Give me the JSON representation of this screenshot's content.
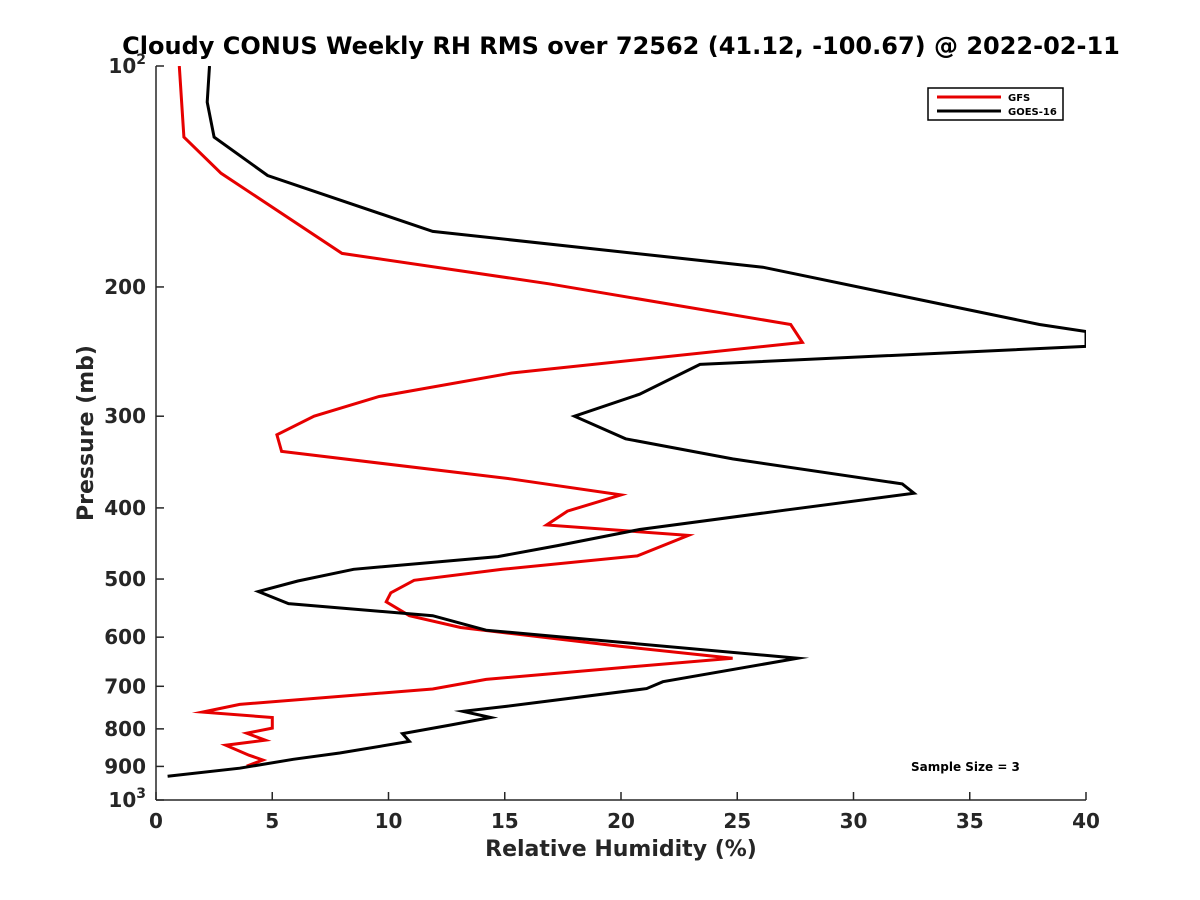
{
  "chart_data": {
    "type": "line",
    "title": "Cloudy CONUS Weekly RH RMS over 72562 (41.12, -100.67) @ 2022-02-11",
    "xlabel": "Relative Humidity (%)",
    "ylabel": "Pressure (mb)",
    "xlim": [
      0,
      40
    ],
    "ylim": [
      100,
      1000
    ],
    "y_scale": "log",
    "y_reversed": true,
    "x_ticks": [
      "0",
      "5",
      "10",
      "15",
      "20",
      "25",
      "30",
      "35",
      "40"
    ],
    "y_ticks": [
      {
        "value": 100,
        "base": "10",
        "exp": "2"
      },
      {
        "value": 200,
        "label": "200"
      },
      {
        "value": 300,
        "label": "300"
      },
      {
        "value": 400,
        "label": "400"
      },
      {
        "value": 500,
        "label": "500"
      },
      {
        "value": 600,
        "label": "600"
      },
      {
        "value": 700,
        "label": "700"
      },
      {
        "value": 800,
        "label": "800"
      },
      {
        "value": 900,
        "label": "900"
      },
      {
        "value": 1000,
        "base": "10",
        "exp": "3"
      }
    ],
    "grid": false,
    "legend_position": "top-right",
    "annotation": "Sample Size = 3",
    "series": [
      {
        "name": "GFS",
        "color": "#e60000",
        "points": [
          [
            1.0,
            100
          ],
          [
            1.2,
            125
          ],
          [
            2.8,
            140
          ],
          [
            8.0,
            180
          ],
          [
            16.9,
            198
          ],
          [
            27.3,
            225
          ],
          [
            27.8,
            238
          ],
          [
            15.3,
            262
          ],
          [
            9.6,
            282
          ],
          [
            6.8,
            300
          ],
          [
            5.2,
            318
          ],
          [
            5.4,
            335
          ],
          [
            15.2,
            365
          ],
          [
            20.0,
            384
          ],
          [
            17.7,
            404
          ],
          [
            16.8,
            422
          ],
          [
            22.9,
            436
          ],
          [
            20.7,
            465
          ],
          [
            14.9,
            485
          ],
          [
            11.1,
            502
          ],
          [
            10.1,
            522
          ],
          [
            9.9,
            537
          ],
          [
            10.9,
            561
          ],
          [
            13.1,
            582
          ],
          [
            19.9,
            617
          ],
          [
            24.8,
            641
          ],
          [
            19.6,
            662
          ],
          [
            14.2,
            685
          ],
          [
            11.9,
            706
          ],
          [
            3.6,
            741
          ],
          [
            2.0,
            759
          ],
          [
            5.0,
            772
          ],
          [
            5.0,
            798
          ],
          [
            3.9,
            811
          ],
          [
            4.7,
            829
          ],
          [
            3.0,
            842
          ],
          [
            4.0,
            869
          ],
          [
            4.6,
            882
          ],
          [
            3.9,
            899
          ]
        ]
      },
      {
        "name": "GOES-16",
        "color": "#000000",
        "points": [
          [
            2.3,
            100
          ],
          [
            2.2,
            112
          ],
          [
            2.5,
            125
          ],
          [
            4.8,
            141
          ],
          [
            11.9,
            168
          ],
          [
            26.1,
            188
          ],
          [
            38.0,
            225
          ],
          [
            40.0,
            230
          ],
          [
            40.0,
            241
          ],
          [
            23.4,
            255
          ],
          [
            20.8,
            280
          ],
          [
            18.0,
            300
          ],
          [
            20.2,
            322
          ],
          [
            24.8,
            343
          ],
          [
            32.1,
            371
          ],
          [
            32.6,
            382
          ],
          [
            27.0,
            403
          ],
          [
            20.8,
            428
          ],
          [
            17.3,
            450
          ],
          [
            14.7,
            466
          ],
          [
            8.5,
            485
          ],
          [
            6.1,
            503
          ],
          [
            4.4,
            520
          ],
          [
            5.7,
            540
          ],
          [
            11.9,
            561
          ],
          [
            14.2,
            587
          ],
          [
            27.6,
            641
          ],
          [
            21.8,
            690
          ],
          [
            21.1,
            705
          ],
          [
            15.1,
            745
          ],
          [
            13.2,
            757
          ],
          [
            14.4,
            772
          ],
          [
            12.7,
            790
          ],
          [
            10.6,
            812
          ],
          [
            10.9,
            832
          ],
          [
            7.9,
            863
          ],
          [
            5.9,
            880
          ],
          [
            3.6,
            905
          ],
          [
            0.5,
            928
          ]
        ]
      }
    ]
  }
}
